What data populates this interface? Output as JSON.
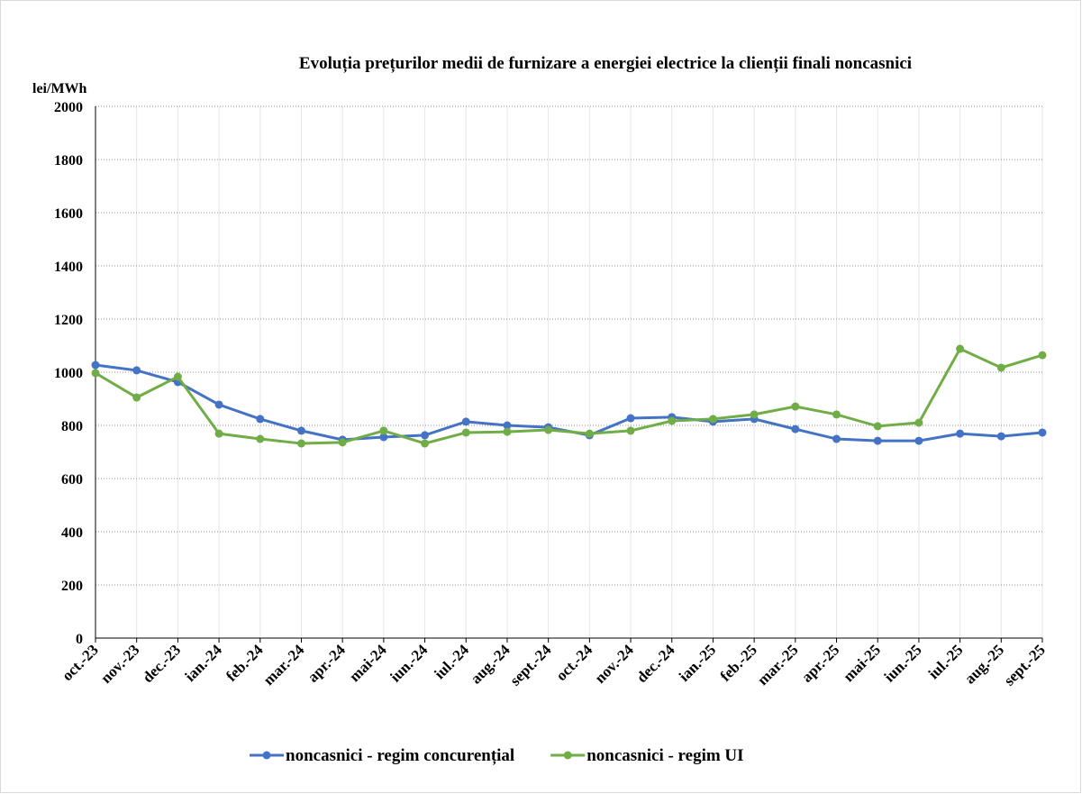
{
  "chart_data": {
    "type": "line",
    "title": "Evoluția prețurilor medii de furnizare a energiei electrice la clienții finali noncasnici",
    "y_label": "lei/MWh",
    "categories": [
      "oct.-23",
      "nov.-23",
      "dec.-23",
      "ian.-24",
      "feb.-24",
      "mar.-24",
      "apr.-24",
      "mai-24",
      "iun.-24",
      "iul.-24",
      "aug.-24",
      "sept.-24",
      "oct.-24",
      "nov.-24",
      "dec.-24",
      "ian.-25",
      "feb.-25",
      "mar.-25",
      "apr.-25",
      "mai-25",
      "iun.-25",
      "iul.-25",
      "aug.-25",
      "sept.-25"
    ],
    "series": [
      {
        "name": "noncasnici - regim concurențial",
        "color": "#4472c4",
        "values": [
          1027,
          1007,
          963,
          878,
          824,
          780,
          746,
          756,
          763,
          814,
          800,
          793,
          763,
          827,
          831,
          814,
          824,
          786,
          749,
          742,
          742,
          769,
          759,
          773
        ]
      },
      {
        "name": "noncasnici - regim UI",
        "color": "#70ad47",
        "values": [
          997,
          905,
          983,
          769,
          749,
          732,
          736,
          780,
          732,
          773,
          776,
          783,
          769,
          780,
          817,
          824,
          841,
          871,
          841,
          797,
          810,
          1088,
          1017,
          1064
        ]
      }
    ],
    "ylim": [
      0,
      2000
    ],
    "yticks": [
      0,
      200,
      400,
      600,
      800,
      1000,
      1200,
      1400,
      1600,
      1800,
      2000
    ],
    "grid": true,
    "legend": "bottom"
  }
}
